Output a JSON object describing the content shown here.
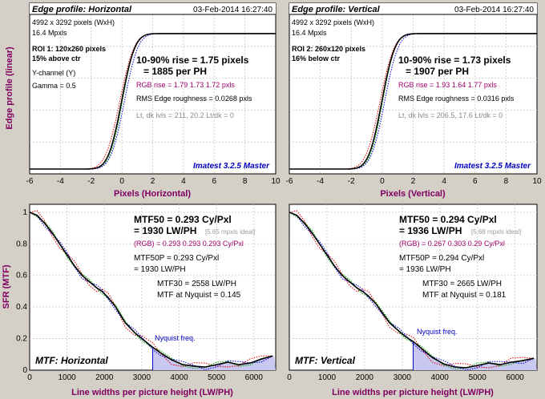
{
  "colors": {
    "background": "#d4d0c8",
    "axis_label": "#800060",
    "annotation_blue": "#0000c0",
    "rgb_magenta": "#a0006a",
    "grey_text": "#8a8a8a",
    "curve_black": "#000000",
    "red_channel": "#e00000",
    "green_channel": "#00a000",
    "blue_channel": "#0000e0",
    "nyquist_fill": "#c8c8f0"
  },
  "shared": {
    "edge_ylabel": "Edge profile (linear)",
    "mtf_ylabel": "SFR (MTF)"
  },
  "chart_data": [
    {
      "type": "line",
      "panel": "edge-horizontal",
      "title": "Edge profile: Horizontal",
      "date": "03-Feb-2014 16:27:40",
      "xlabel": "Pixels (Horizontal)",
      "xlim": [
        -6,
        10
      ],
      "xticks": [
        -6,
        -4,
        -2,
        0,
        2,
        4,
        6,
        8,
        10
      ],
      "grid": true,
      "info": [
        "4992 x 3292 pixels (WxH)",
        "16.4 Mpxls"
      ],
      "roi": [
        "ROI 1:  120x260 pixels",
        "15% above ctr"
      ],
      "channel": "Y-channel  (Y)",
      "gamma": "Gamma = 0.5",
      "rise_main": "10-90% rise = 1.75 pixels",
      "rise_ph": "= 1885 per PH",
      "rgb_rise": "RGB rise = 1.79  1.73  1.72 pxls",
      "roughness": "RMS Edge roughness = 0.0268 pxls",
      "levels": "Lt, dk lvls = 211, 20.2   Lt/dk = 0",
      "watermark": "Imatest 3.2.5 Master",
      "edge_center": -0.02,
      "rise_10_90": 1.75,
      "low_level": 0.03,
      "high_level": 0.88,
      "x": [
        -6,
        -5,
        -4,
        -3,
        -2.5,
        -2,
        -1.5,
        -1,
        -0.5,
        0,
        0.5,
        1,
        1.5,
        2,
        3,
        4,
        6,
        8,
        10
      ],
      "y": [
        0.03,
        0.03,
        0.03,
        0.04,
        0.05,
        0.07,
        0.12,
        0.21,
        0.34,
        0.46,
        0.59,
        0.72,
        0.8,
        0.84,
        0.87,
        0.88,
        0.88,
        0.88,
        0.88
      ]
    },
    {
      "type": "line",
      "panel": "edge-vertical",
      "title": "Edge profile: Vertical",
      "date": "03-Feb-2014 16:27:40",
      "xlabel": "Pixels (Vertical)",
      "xlim": [
        -6,
        10
      ],
      "xticks": [
        -6,
        -4,
        -2,
        0,
        2,
        4,
        6,
        8,
        10
      ],
      "grid": true,
      "info": [
        "4992 x 3292 pixels (WxH)",
        "16.4 Mpxls"
      ],
      "roi": [
        "ROI 2:  260x120 pixels",
        "16% below ctr"
      ],
      "rise_main": "10-90% rise = 1.73 pixels",
      "rise_ph": "= 1907 per PH",
      "rgb_rise": "RGB rise = 1.93  1.64  1.77 pxls",
      "roughness": "RMS Edge roughness = 0.0316 pxls",
      "levels": "Lt, dk lvls = 206.5, 17.6   Lt/dk = 0",
      "watermark": "Imatest 3.2.5 Master",
      "edge_center": -0.02,
      "rise_10_90": 1.73,
      "low_level": 0.03,
      "high_level": 0.88,
      "x": [
        -6,
        -5,
        -4,
        -3,
        -2.5,
        -2,
        -1.5,
        -1,
        -0.5,
        0,
        0.5,
        1,
        1.5,
        2,
        3,
        4,
        6,
        8,
        10
      ],
      "y": [
        0.03,
        0.03,
        0.03,
        0.04,
        0.05,
        0.07,
        0.12,
        0.21,
        0.34,
        0.46,
        0.59,
        0.72,
        0.8,
        0.84,
        0.87,
        0.88,
        0.88,
        0.88,
        0.88
      ]
    },
    {
      "type": "line",
      "panel": "mtf-horizontal",
      "title": "MTF: Horizontal",
      "xlabel": "Line widths per picture height (LW/PH)",
      "xlim": [
        0,
        6583
      ],
      "ylim": [
        0,
        1.05
      ],
      "xticks": [
        0,
        1000,
        2000,
        3000,
        4000,
        5000,
        6000
      ],
      "yticks": [
        0,
        0.2,
        0.4,
        0.6,
        0.8,
        1
      ],
      "grid": true,
      "mtf50": "MTF50 = 0.293 Cy/Pxl",
      "mtf50_lw": "= 1930 LW/PH",
      "mtf50_ideal": "[5.65 mpxls ideal]",
      "rgb": "(RGB) = 0.293  0.293  0.293 Cy/Pxl",
      "mtf50p": "MTF50P = 0.293 Cy/Pxl",
      "mtf50p_lw": "= 1930 LW/PH",
      "mtf30": "MTF30 = 2558 LW/PH",
      "nyquist_text": "MTF at Nyquist = 0.145",
      "nyquist_label": "Nyquist freq.",
      "nyquist_freq": 3292,
      "x": [
        0,
        200,
        400,
        600,
        800,
        1000,
        1200,
        1400,
        1600,
        1800,
        1930,
        2100,
        2300,
        2558,
        2800,
        3000,
        3292,
        3500,
        3800,
        4100,
        4400,
        4700,
        5000,
        5300,
        5600,
        5900,
        6200,
        6500
      ],
      "y": [
        1.0,
        0.98,
        0.93,
        0.87,
        0.8,
        0.73,
        0.66,
        0.6,
        0.56,
        0.52,
        0.5,
        0.46,
        0.4,
        0.3,
        0.24,
        0.2,
        0.145,
        0.11,
        0.065,
        0.035,
        0.025,
        0.02,
        0.035,
        0.05,
        0.035,
        0.045,
        0.07,
        0.09
      ]
    },
    {
      "type": "line",
      "panel": "mtf-vertical",
      "title": "MTF: Vertical",
      "xlabel": "Line widths per picture height (LW/PH)",
      "xlim": [
        0,
        6583
      ],
      "ylim": [
        0,
        1.05
      ],
      "xticks": [
        0,
        1000,
        2000,
        3000,
        4000,
        5000,
        6000
      ],
      "yticks": [
        0,
        0.2,
        0.4,
        0.6,
        0.8,
        1
      ],
      "grid": true,
      "mtf50": "MTF50 = 0.294 Cy/Pxl",
      "mtf50_lw": "= 1936 LW/PH",
      "mtf50_ideal": "[5.68 mpxls ideal]",
      "rgb": "(RGB) = 0.267  0.303  0.29 Cy/Pxl",
      "mtf50p": "MTF50P = 0.294 Cy/Pxl",
      "mtf50p_lw": "= 1936 LW/PH",
      "mtf30": "MTF30 = 2665 LW/PH",
      "nyquist_text": "MTF at Nyquist = 0.181",
      "nyquist_label": "Nyquist freq.",
      "nyquist_freq": 3292,
      "x": [
        0,
        200,
        400,
        600,
        800,
        1000,
        1200,
        1400,
        1600,
        1800,
        1936,
        2100,
        2300,
        2665,
        2900,
        3100,
        3292,
        3500,
        3800,
        4100,
        4400,
        4700,
        5000,
        5300,
        5600,
        5900,
        6200,
        6500
      ],
      "y": [
        1.0,
        0.98,
        0.93,
        0.87,
        0.8,
        0.73,
        0.66,
        0.6,
        0.56,
        0.52,
        0.5,
        0.47,
        0.42,
        0.3,
        0.25,
        0.21,
        0.181,
        0.14,
        0.08,
        0.04,
        0.02,
        0.015,
        0.03,
        0.045,
        0.035,
        0.05,
        0.06,
        0.075
      ]
    }
  ]
}
